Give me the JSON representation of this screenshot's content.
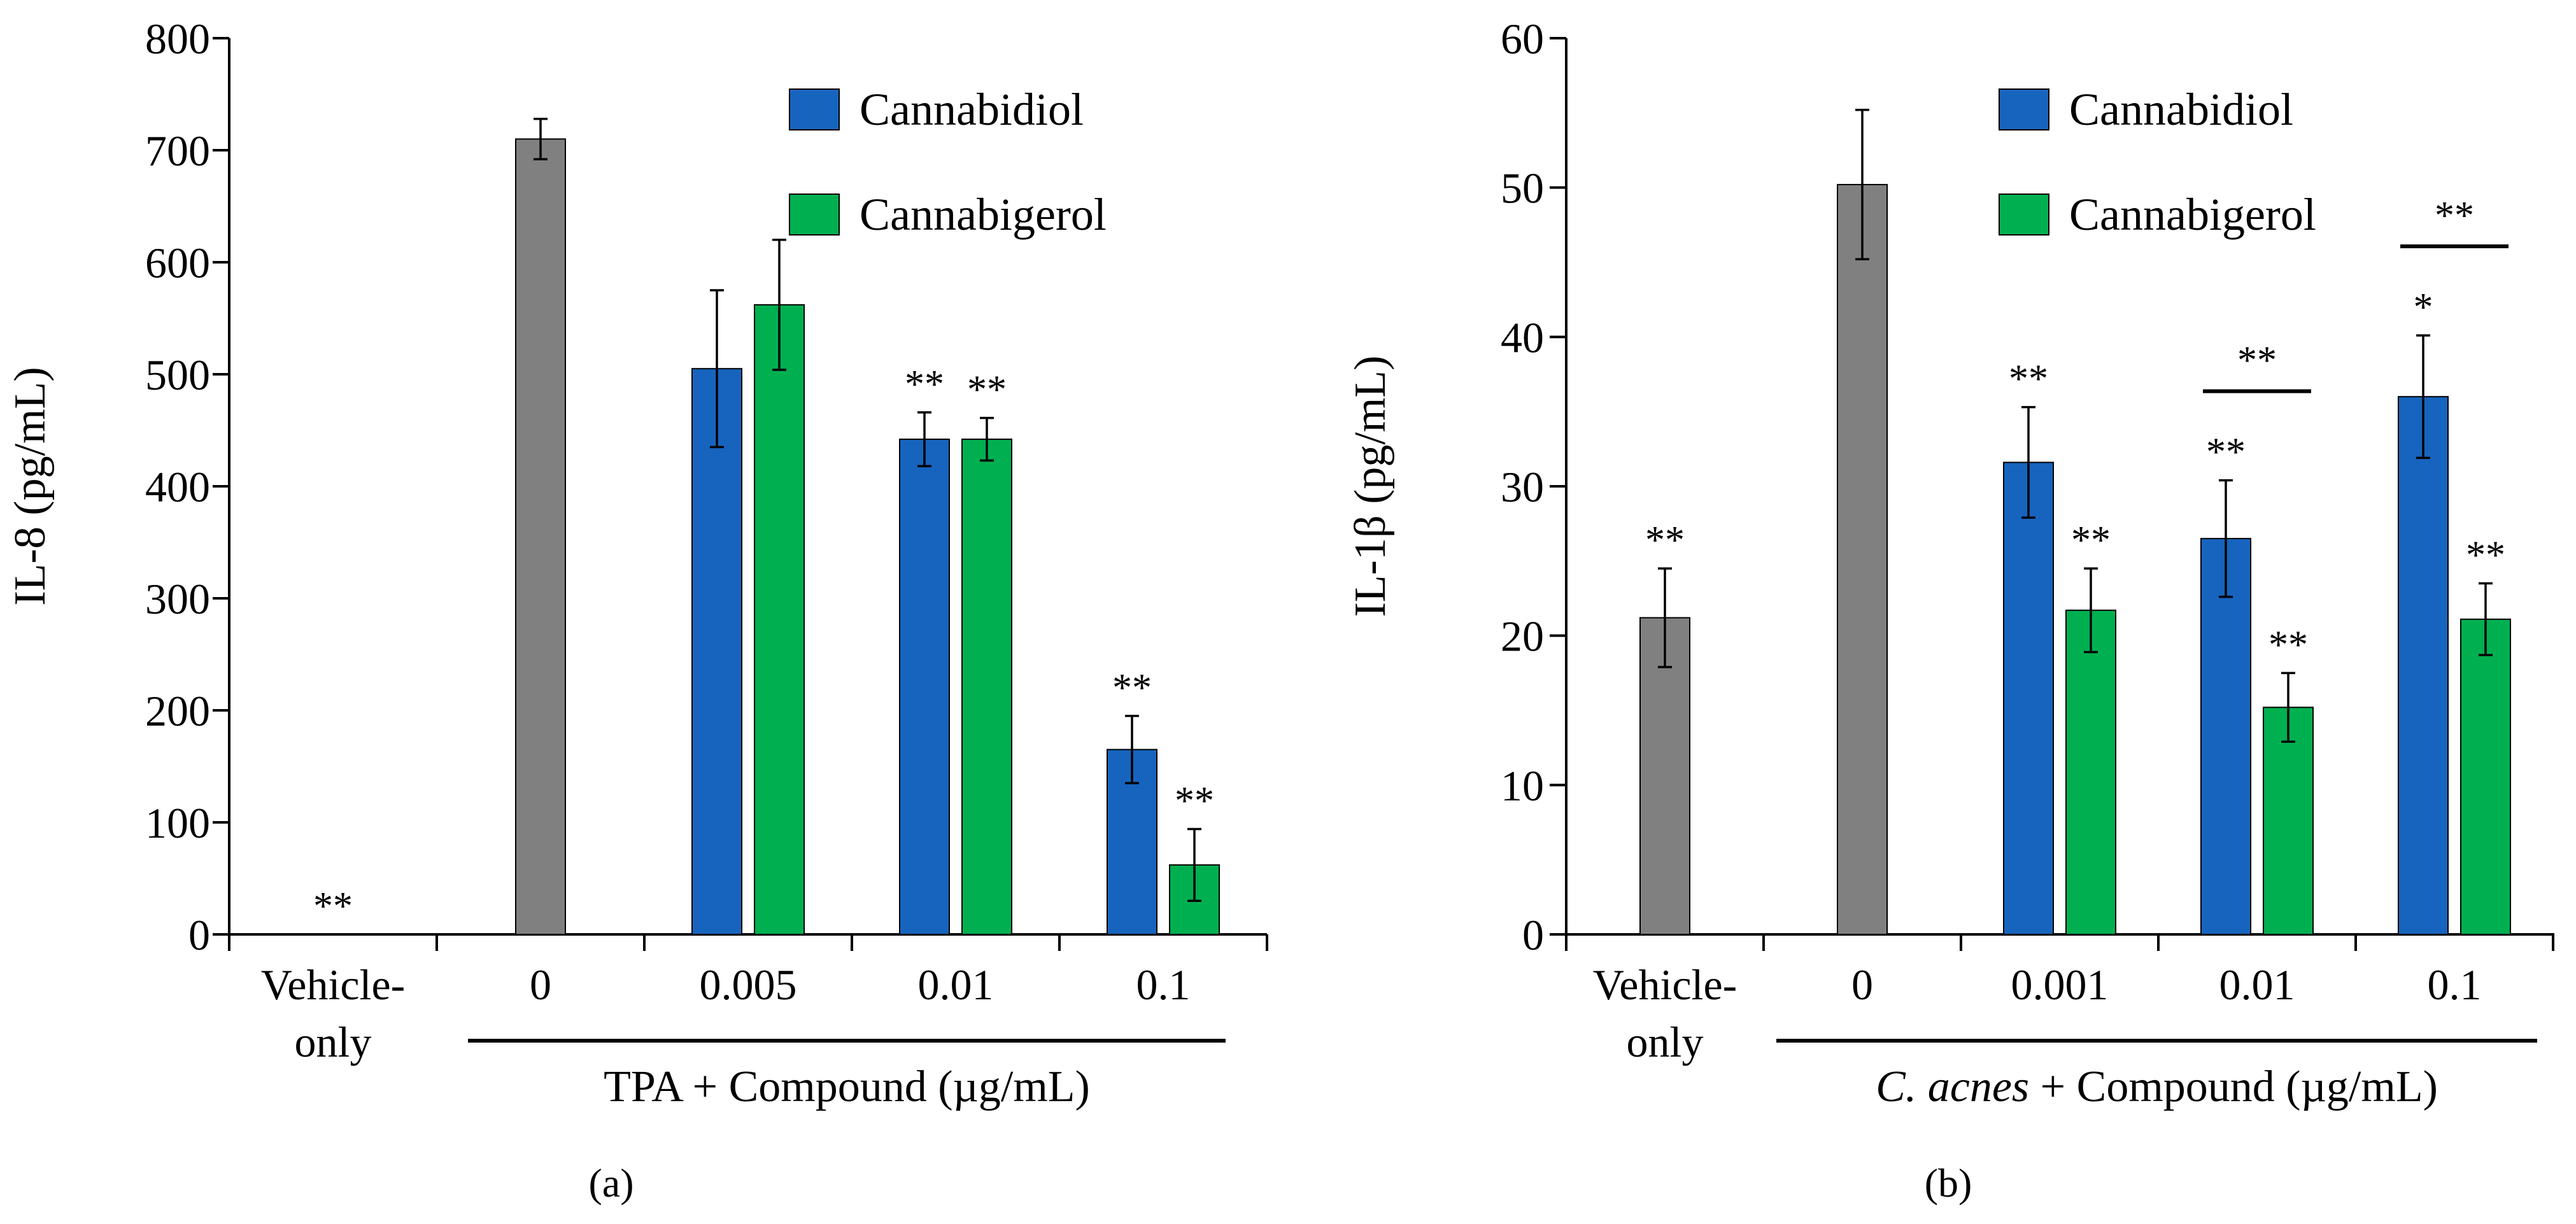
{
  "figure": {
    "panel_a_label": "(a)",
    "panel_b_label": "(b)"
  },
  "colors": {
    "vehicle": "#808080",
    "cannabidiol": "#1764BE",
    "cannabigerol": "#00B050",
    "axis": "#000000"
  },
  "chart_data": [
    {
      "type": "bar",
      "panel": "a",
      "ylabel": "IL-8 (pg/mL)",
      "xlabel": "TPA + Compound (µg/mL)",
      "ylim": [
        0,
        800
      ],
      "yticks": [
        0,
        100,
        200,
        300,
        400,
        500,
        600,
        700,
        800
      ],
      "categories": [
        "Vehicle-only",
        "0",
        "0.005",
        "0.01",
        "0.1"
      ],
      "category_label_lines": [
        [
          "Vehicle-",
          "only"
        ],
        [
          "0"
        ],
        [
          "0.005"
        ],
        [
          "0.01"
        ],
        [
          "0.1"
        ]
      ],
      "legend": [
        "Cannabidiol",
        "Cannabigerol"
      ],
      "legend_position": "top-right",
      "grid": false,
      "single": [
        {
          "category": "Vehicle-only",
          "value": 0,
          "error": 0,
          "sig": "**"
        },
        {
          "category": "0",
          "value": 710,
          "error": 18,
          "sig": ""
        }
      ],
      "series": [
        {
          "name": "Cannabidiol",
          "category_values": {
            "0.005": 505,
            "0.01": 442,
            "0.1": 165
          },
          "errors": {
            "0.005": 70,
            "0.01": 24,
            "0.1": 30
          },
          "sig": {
            "0.005": "",
            "0.01": "**",
            "0.1": "**"
          }
        },
        {
          "name": "Cannabigerol",
          "category_values": {
            "0.005": 562,
            "0.01": 442,
            "0.1": 62
          },
          "errors": {
            "0.005": 58,
            "0.01": 19,
            "0.1": 32
          },
          "sig": {
            "0.005": "",
            "0.01": "**",
            "0.1": "**"
          }
        }
      ],
      "brackets": []
    },
    {
      "type": "bar",
      "panel": "b",
      "ylabel": "IL-1β (pg/mL)",
      "xlabel_italic": "C. acnes",
      "xlabel": " + Compound (µg/mL)",
      "ylim": [
        0,
        60
      ],
      "yticks": [
        0,
        10,
        20,
        30,
        40,
        50,
        60
      ],
      "categories": [
        "Vehicle-only",
        "0",
        "0.001",
        "0.01",
        "0.1"
      ],
      "category_label_lines": [
        [
          "Vehicle-",
          "only"
        ],
        [
          "0"
        ],
        [
          "0.001"
        ],
        [
          "0.01"
        ],
        [
          "0.1"
        ]
      ],
      "legend": [
        "Cannabidiol",
        "Cannabigerol"
      ],
      "legend_position": "top-center",
      "grid": false,
      "single": [
        {
          "category": "Vehicle-only",
          "value": 21.2,
          "error": 3.3,
          "sig": "**"
        },
        {
          "category": "0",
          "value": 50.2,
          "error": 5.0,
          "sig": ""
        }
      ],
      "series": [
        {
          "name": "Cannabidiol",
          "category_values": {
            "0.001": 31.6,
            "0.01": 26.5,
            "0.1": 36.0
          },
          "errors": {
            "0.001": 3.7,
            "0.01": 3.9,
            "0.1": 4.1
          },
          "sig": {
            "0.001": "**",
            "0.01": "**",
            "0.1": "*"
          }
        },
        {
          "name": "Cannabigerol",
          "category_values": {
            "0.001": 21.7,
            "0.01": 15.2,
            "0.1": 21.1
          },
          "errors": {
            "0.001": 2.8,
            "0.01": 2.3,
            "0.1": 2.4
          },
          "sig": {
            "0.001": "**",
            "0.01": "**",
            "0.1": "**"
          }
        }
      ],
      "brackets": [
        {
          "category": "0.01",
          "label": "**"
        },
        {
          "category": "0.1",
          "label": "**"
        }
      ]
    }
  ]
}
